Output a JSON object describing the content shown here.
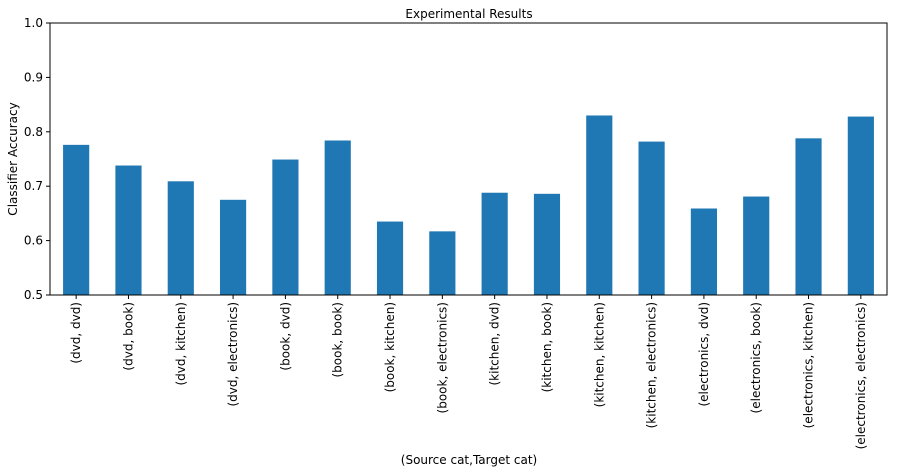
{
  "chart_data": {
    "type": "bar",
    "title": "Experimental Results",
    "xlabel": "(Source cat,Target cat)",
    "ylabel": "Classifier Accuracy",
    "ylim": [
      0.5,
      1.0
    ],
    "yticks": [
      "0.5",
      "0.6",
      "0.7",
      "0.8",
      "0.9",
      "1.0"
    ],
    "categories": [
      "(dvd, dvd)",
      "(dvd, book)",
      "(dvd, kitchen)",
      "(dvd, electronics)",
      "(book, dvd)",
      "(book, book)",
      "(book, kitchen)",
      "(book, electronics)",
      "(kitchen, dvd)",
      "(kitchen, book)",
      "(kitchen, kitchen)",
      "(kitchen, electronics)",
      "(electronics, dvd)",
      "(electronics, book)",
      "(electronics, kitchen)",
      "(electronics, electronics)"
    ],
    "values": [
      0.776,
      0.738,
      0.709,
      0.675,
      0.749,
      0.784,
      0.635,
      0.617,
      0.688,
      0.686,
      0.83,
      0.782,
      0.659,
      0.681,
      0.788,
      0.828
    ],
    "bar_color": "#1f77b4",
    "grid": false,
    "legend": "none"
  }
}
